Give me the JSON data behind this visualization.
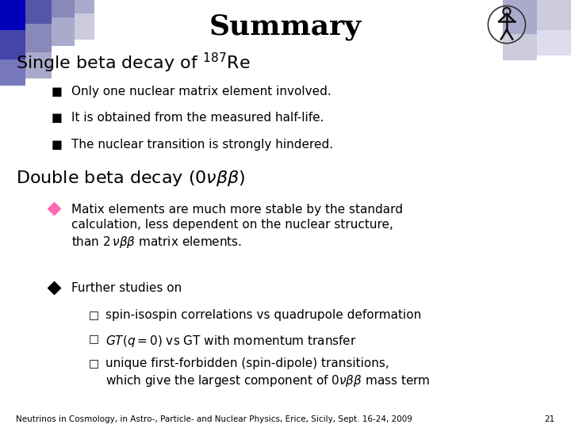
{
  "title": "Summary",
  "title_fontsize": 26,
  "background_color": "#ffffff",
  "text_color": "#000000",
  "section1_heading": "Single beta decay of $^{187}$Re",
  "section1_fontsize": 16,
  "section1_bullets": [
    "Only one nuclear matrix element involved.",
    "It is obtained from the measured half-life.",
    "The nuclear transition is strongly hindered."
  ],
  "section2_heading": "Double beta decay ($0\\nu\\beta\\beta$)",
  "section2_fontsize": 16,
  "section2_diamond1_color": "#ff69b4",
  "section2_diamond2_color": "#000000",
  "section2_diamond1": "Matix elements are much more stable by the standard\ncalculation, less dependent on the nuclear structure,\nthan $2\\,\\nu\\beta\\beta$ matrix elements.",
  "section2_diamond2": "Further studies on",
  "section2_sub_bullets": [
    "spin-isospin correlations vs quadrupole deformation",
    "$GT(q{=}0)$ vs GT with momentum transfer",
    "unique first-forbidden (spin-dipole) transitions,\nwhich give the largest component of $0\\nu\\beta\\beta$ mass term"
  ],
  "footer": "Neutrinos in Cosmology, in Astro-, Particle- and Nuclear Physics, Erice, Sicily, Sept. 16-24, 2009",
  "footer_page": "21",
  "footer_fontsize": 7.5,
  "body_fontsize": 11,
  "bullet_indent": 0.09,
  "text_indent": 0.125,
  "sub_bullet_indent": 0.155,
  "sub_text_indent": 0.185
}
